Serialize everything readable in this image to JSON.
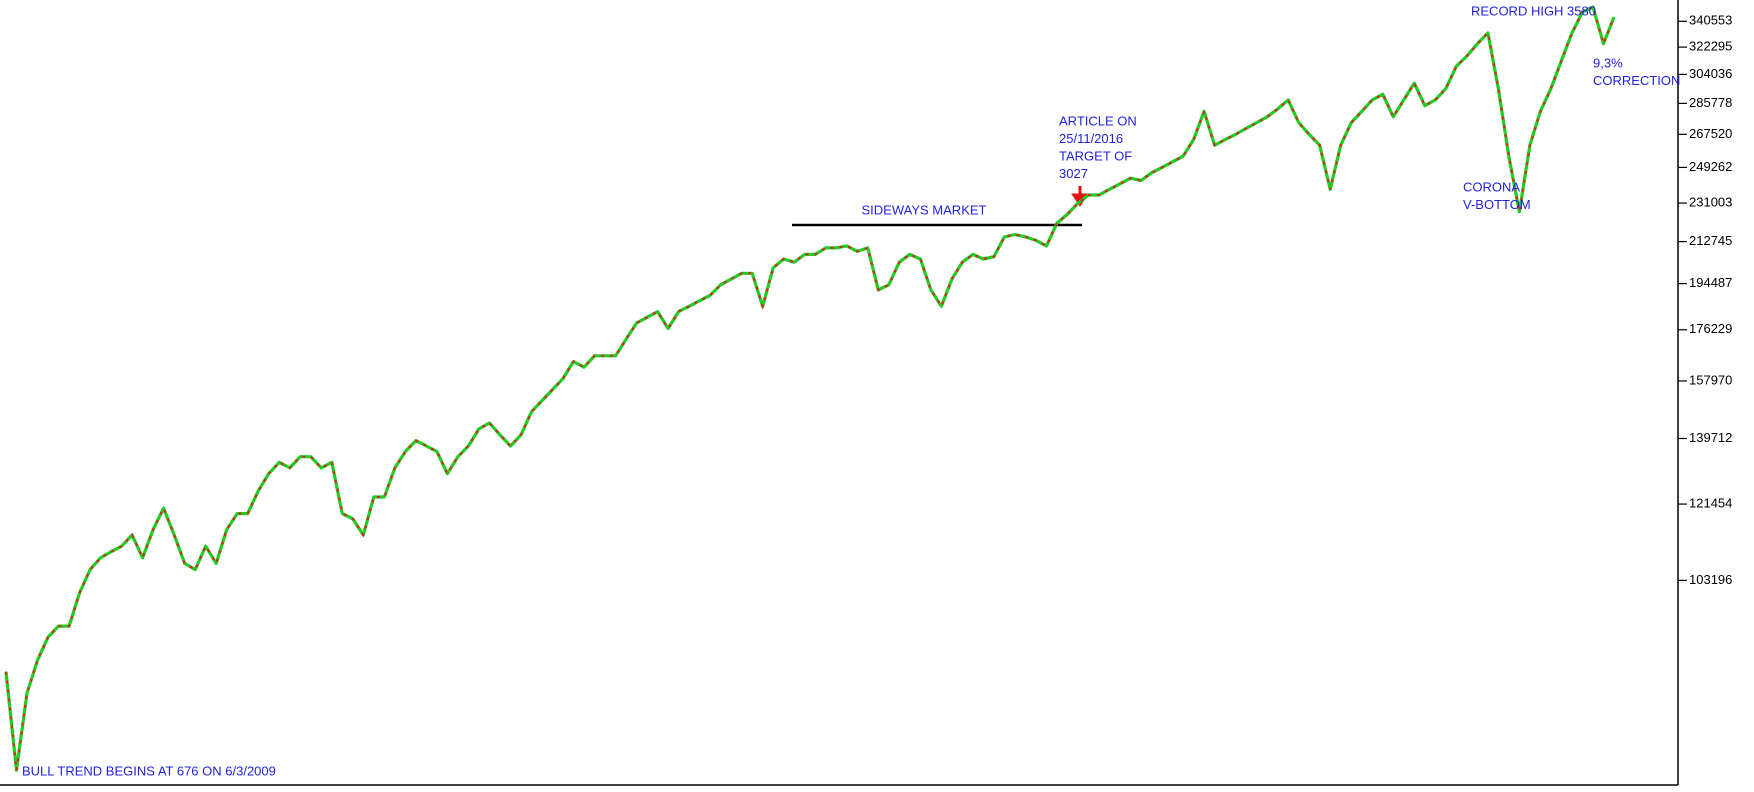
{
  "chart_data": {
    "type": "line",
    "log_scale": true,
    "grid": false,
    "series": [
      {
        "name": "Index",
        "color": "#22cc22",
        "down_color": "#dd2222",
        "values": [
          84900,
          68800,
          81100,
          87000,
          91400,
          93600,
          93600,
          100500,
          105600,
          108300,
          109700,
          111000,
          113700,
          108300,
          115000,
          120400,
          113700,
          107000,
          105600,
          111000,
          107000,
          115000,
          119000,
          119000,
          124900,
          129600,
          132800,
          131200,
          134400,
          134400,
          131200,
          132800,
          119000,
          117700,
          113700,
          123300,
          123300,
          131200,
          135900,
          139100,
          137500,
          135900,
          129600,
          134400,
          137500,
          142600,
          144400,
          140800,
          137500,
          140800,
          147900,
          151500,
          155100,
          158800,
          164700,
          162700,
          166700,
          166700,
          166700,
          172700,
          178800,
          181000,
          183200,
          176700,
          183200,
          185300,
          187500,
          189700,
          194000,
          196400,
          198800,
          198800,
          185300,
          201200,
          205000,
          203600,
          207000,
          207000,
          209900,
          209900,
          210800,
          208400,
          209900,
          191900,
          194000,
          203600,
          207000,
          205000,
          191900,
          185300,
          196400,
          203600,
          207000,
          205000,
          206000,
          214900,
          216000,
          214900,
          213300,
          210800,
          221300,
          225600,
          231000,
          235000,
          235000,
          237900,
          240700,
          243600,
          242400,
          246400,
          249300,
          252300,
          255300,
          264500,
          281000,
          261400,
          264500,
          267500,
          270900,
          274300,
          277700,
          282400,
          287900,
          274300,
          267500,
          261400,
          237900,
          261400,
          274300,
          281000,
          287900,
          291400,
          277700,
          287900,
          298400,
          284400,
          287900,
          294900,
          309400,
          316200,
          324600,
          332200,
          294900,
          255000,
          226700,
          261400,
          281000,
          294900,
          313200,
          332200,
          347400,
          351200,
          324600,
          343600
        ]
      }
    ],
    "ylim": [
      66660,
      356400
    ],
    "yticks": [
      340553,
      322295,
      304036,
      285778,
      267520,
      249262,
      231003,
      212745,
      194487,
      176229,
      157970,
      139712,
      121454,
      103196
    ],
    "annotations": [
      {
        "lines": [
          "RECORD HIGH 3580"
        ]
      },
      {
        "lines": [
          "9,3%",
          "CORRECTION"
        ]
      },
      {
        "lines": [
          "ARTICLE ON",
          "25/11/2016",
          "TARGET OF",
          "3027"
        ]
      },
      {
        "lines": [
          "SIDEWAYS MARKET"
        ]
      },
      {
        "lines": [
          "CORONA",
          "V-BOTTOM"
        ]
      },
      {
        "lines": [
          "BULL TREND BEGINS AT 676 ON 6/3/2009"
        ]
      }
    ]
  }
}
